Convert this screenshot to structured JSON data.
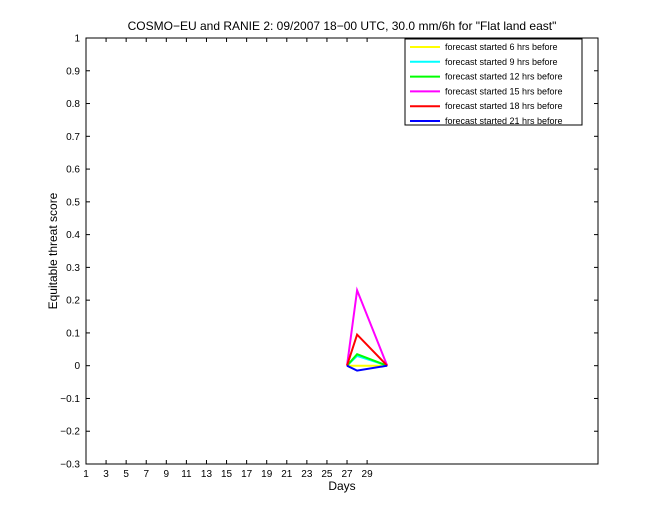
{
  "chart_data": {
    "type": "line",
    "title": "COSMO−EU and RANIE 2: 09/2007 18−00 UTC, 30.0 mm/6h for \"Flat land east\"",
    "xlabel": "Days",
    "ylabel": "Equitable threat score",
    "xlim": [
      1,
      52
    ],
    "ylim": [
      -0.3,
      1
    ],
    "xticks": [
      1,
      3,
      5,
      7,
      9,
      11,
      13,
      15,
      17,
      19,
      21,
      23,
      25,
      27,
      29
    ],
    "xtick_labels": [
      "1",
      "3",
      "5",
      "7",
      "9",
      "11",
      "13",
      "15",
      "17",
      "19",
      "21",
      "23",
      "25",
      "27",
      "29"
    ],
    "yticks": [
      -0.3,
      -0.2,
      -0.1,
      0,
      0.1,
      0.2,
      0.3,
      0.4,
      0.5,
      0.6,
      0.7,
      0.8,
      0.9,
      1
    ],
    "ytick_labels": [
      "−0.3",
      "−0.2",
      "−0.1",
      "0",
      "0.1",
      "0.2",
      "0.3",
      "0.4",
      "0.5",
      "0.6",
      "0.7",
      "0.8",
      "0.9",
      "1"
    ],
    "grid": false,
    "legend_position": "top-right",
    "series": [
      {
        "name": "forecast started 6 hrs before",
        "color": "#ffff00",
        "points": [
          [
            27,
            0
          ],
          [
            28,
            0
          ],
          [
            31,
            0
          ]
        ]
      },
      {
        "name": "forecast started 9 hrs before",
        "color": "#00ffff",
        "points": [
          [
            27,
            0
          ],
          [
            28,
            0.03
          ],
          [
            31,
            0
          ]
        ]
      },
      {
        "name": "forecast started 12 hrs before",
        "color": "#00ff00",
        "points": [
          [
            27,
            0
          ],
          [
            28,
            0.035
          ],
          [
            31,
            0
          ]
        ]
      },
      {
        "name": "forecast started 15 hrs before",
        "color": "#ff00ff",
        "points": [
          [
            27,
            0
          ],
          [
            28,
            0.23
          ],
          [
            31,
            0
          ]
        ]
      },
      {
        "name": "forecast started 18 hrs before",
        "color": "#ff0000",
        "points": [
          [
            27,
            0
          ],
          [
            28,
            0.095
          ],
          [
            31,
            0
          ]
        ]
      },
      {
        "name": "forecast started 21 hrs before",
        "color": "#0000ff",
        "points": [
          [
            27,
            0
          ],
          [
            28,
            -0.015
          ],
          [
            31,
            0
          ]
        ]
      }
    ]
  }
}
